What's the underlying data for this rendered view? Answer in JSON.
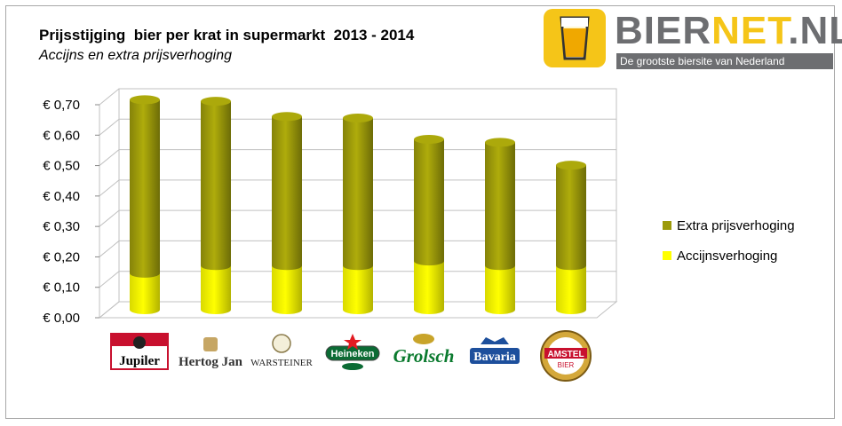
{
  "header": {
    "title": "Prijsstijging  bier per krat in supermarkt  2013 - 2014",
    "subtitle": "Accijns en extra prijsverhoging"
  },
  "logo": {
    "word_part1": "BIER",
    "word_part2": "NET",
    "word_part3": ".NL",
    "tagline": "De grootste biersite van Nederland"
  },
  "colors": {
    "excise": "#ffff00",
    "extra": "#9c9a0a",
    "grid": "#c0c0c0"
  },
  "brands": [
    {
      "name": "Jupiler",
      "label": "Jupiler"
    },
    {
      "name": "Hertog Jan",
      "label": "Hertog Jan"
    },
    {
      "name": "Warsteiner",
      "label": "WARSTEINER"
    },
    {
      "name": "Heineken",
      "label": "Heineken"
    },
    {
      "name": "Grolsch",
      "label": "Grolsch"
    },
    {
      "name": "Bavaria",
      "label": "Bavaria"
    },
    {
      "name": "Amstel",
      "label": "AMSTEL",
      "sublabel": "BIER"
    }
  ],
  "chart_data": {
    "type": "bar",
    "stacked": true,
    "categories": [
      "Jupiler",
      "Hertog Jan",
      "Warsteiner",
      "Heineken",
      "Grolsch",
      "Bavaria",
      "Amstel"
    ],
    "series": [
      {
        "name": "Accijnsverhoging",
        "values": [
          0.12,
          0.145,
          0.145,
          0.145,
          0.16,
          0.145,
          0.145
        ]
      },
      {
        "name": "Extra prijsverhoging",
        "values": [
          0.57,
          0.54,
          0.49,
          0.485,
          0.4,
          0.405,
          0.33
        ]
      }
    ],
    "title": "Prijsstijging  bier per krat in supermarkt  2013 - 2014",
    "subtitle": "Accijns en extra prijsverhoging",
    "ylim": [
      0,
      0.7
    ],
    "yticks": [
      "€ 0,00",
      "€ 0,10",
      "€ 0,20",
      "€ 0,30",
      "€ 0,40",
      "€ 0,50",
      "€ 0,60",
      "€ 0,70"
    ],
    "legend": [
      {
        "name": "Extra prijsverhoging",
        "color": "#9c9a0a"
      },
      {
        "name": "Accijnsverhoging",
        "color": "#ffff00"
      }
    ],
    "legend_position": "right",
    "grid": true
  }
}
